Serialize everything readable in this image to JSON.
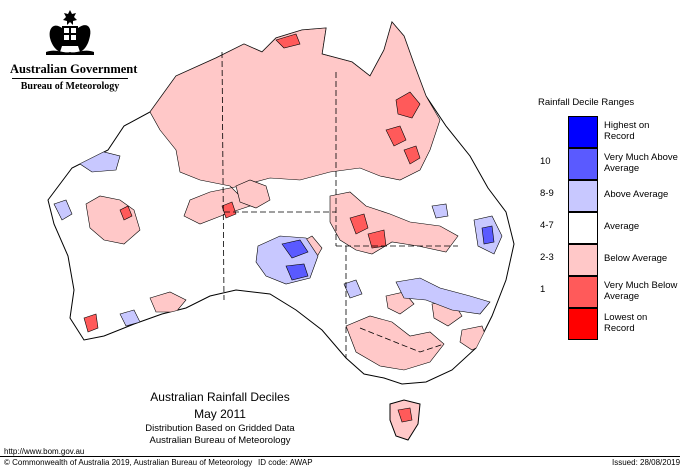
{
  "header": {
    "government": "Australian Government",
    "bureau": "Bureau of Meteorology"
  },
  "map": {
    "title": "Australian Rainfall Deciles",
    "period": "May 2011",
    "note1": "Distribution Based on Gridded Data",
    "note2": "Australian Bureau of Meteorology"
  },
  "legend": {
    "title": "Rainfall Decile Ranges",
    "items": [
      {
        "label": "Highest on Record",
        "range": "",
        "color": "#0000ff"
      },
      {
        "label": "Very Much Above Average",
        "range": "10",
        "color": "#5a5aff"
      },
      {
        "label": "Above Average",
        "range": "8-9",
        "color": "#c8c8ff"
      },
      {
        "label": "Average",
        "range": "4-7",
        "color": "#ffffff"
      },
      {
        "label": "Below Average",
        "range": "2-3",
        "color": "#ffc8c8"
      },
      {
        "label": "Very Much Below Average",
        "range": "1",
        "color": "#ff5a5a"
      },
      {
        "label": "Lowest on Record",
        "range": "",
        "color": "#ff0000"
      }
    ]
  },
  "footer": {
    "url": "http://www.bom.gov.au",
    "copyright": "© Commonwealth of Australia 2019, Australian Bureau of Meteorology",
    "id_code": "ID code: AWAP",
    "issued": "Issued: 28/08/2019"
  }
}
